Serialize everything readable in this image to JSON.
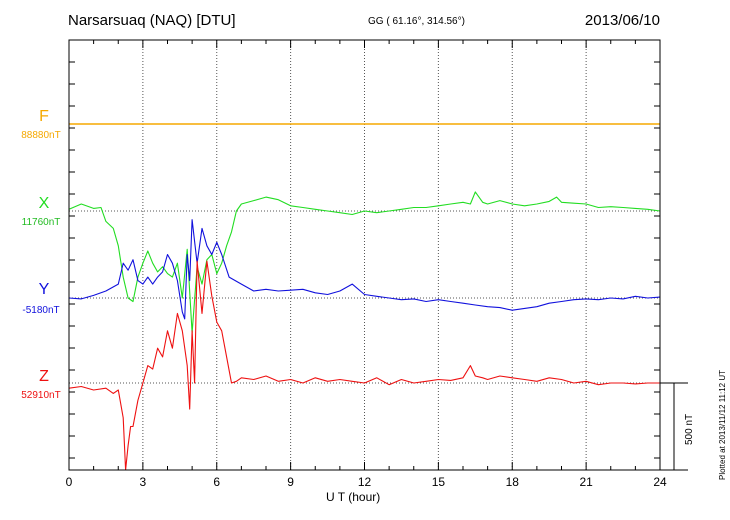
{
  "header": {
    "station": "Narsarsuaq (NAQ)  [DTU]",
    "coords": "GG ( 61.16°, 314.56°)",
    "date": "2013/06/10"
  },
  "components": [
    {
      "label": "F",
      "baseline": "88880nT",
      "color": "#f5a800"
    },
    {
      "label": "X",
      "baseline": "11760nT",
      "color": "#22dd22"
    },
    {
      "label": "Y",
      "baseline": "-5180nT",
      "color": "#1111dd"
    },
    {
      "label": "Z",
      "baseline": "52910nT",
      "color": "#ee1111"
    }
  ],
  "plotted_note": "Plotted at 2013/11/12 11:12 UT",
  "scale_label": "500 nT",
  "chart_data": {
    "type": "line",
    "xlabel": "U T (hour)",
    "xlim": [
      0,
      24
    ],
    "xticks": [
      0,
      3,
      6,
      9,
      12,
      15,
      18,
      21,
      24
    ],
    "scale_nT": 500,
    "grid": true,
    "units": "nT deviation from baseline",
    "series": [
      {
        "name": "F",
        "color": "#f5a800",
        "x": [
          0,
          24
        ],
        "y": [
          0,
          0
        ]
      },
      {
        "name": "X",
        "color": "#22dd22",
        "x": [
          0,
          0.5,
          1.0,
          1.3,
          1.5,
          1.8,
          2.0,
          2.2,
          2.4,
          2.6,
          2.8,
          3.0,
          3.2,
          3.4,
          3.6,
          3.8,
          4.0,
          4.2,
          4.4,
          4.6,
          4.8,
          5.0,
          5.2,
          5.4,
          5.6,
          5.8,
          6.0,
          6.2,
          6.4,
          6.6,
          6.8,
          7.0,
          7.5,
          8.0,
          8.5,
          9.0,
          9.5,
          10.0,
          10.5,
          11.0,
          11.5,
          12.0,
          12.5,
          13.0,
          13.5,
          14.0,
          14.5,
          15.0,
          15.5,
          16.0,
          16.3,
          16.5,
          16.8,
          17.0,
          17.5,
          18.0,
          18.5,
          19.0,
          19.5,
          19.8,
          20.0,
          20.5,
          21.0,
          21.5,
          22.0,
          22.5,
          23.0,
          23.5,
          24.0
        ],
        "y": [
          10,
          40,
          15,
          20,
          -60,
          -100,
          -200,
          -380,
          -500,
          -520,
          -380,
          -300,
          -230,
          -300,
          -350,
          -320,
          -360,
          -380,
          -300,
          -500,
          -220,
          -700,
          -320,
          -420,
          -280,
          -250,
          -360,
          -300,
          -200,
          -120,
          0,
          40,
          60,
          80,
          65,
          30,
          20,
          10,
          0,
          -10,
          -20,
          0,
          -10,
          0,
          10,
          20,
          20,
          30,
          40,
          50,
          40,
          110,
          50,
          40,
          60,
          40,
          30,
          40,
          55,
          80,
          50,
          45,
          40,
          20,
          25,
          20,
          15,
          10,
          0
        ]
      },
      {
        "name": "Y",
        "color": "#1111dd",
        "x": [
          0,
          0.5,
          1.0,
          1.5,
          2.0,
          2.2,
          2.4,
          2.6,
          2.8,
          3.0,
          3.2,
          3.4,
          3.6,
          3.8,
          4.0,
          4.2,
          4.4,
          4.6,
          4.7,
          4.8,
          4.9,
          5.0,
          5.2,
          5.4,
          5.6,
          5.8,
          6.0,
          6.2,
          6.5,
          7.0,
          7.5,
          8.0,
          8.5,
          9.0,
          9.5,
          10.0,
          10.5,
          11.0,
          11.5,
          12.0,
          12.5,
          13.0,
          13.5,
          14.0,
          14.5,
          15.0,
          15.5,
          16.0,
          16.5,
          17.0,
          17.5,
          18.0,
          18.5,
          19.0,
          19.5,
          20.0,
          20.5,
          21.0,
          21.5,
          22.0,
          22.5,
          23.0,
          23.5,
          24.0
        ],
        "y": [
          0,
          -5,
          15,
          40,
          80,
          200,
          160,
          220,
          100,
          80,
          120,
          80,
          120,
          150,
          250,
          200,
          100,
          -80,
          -120,
          250,
          100,
          450,
          200,
          400,
          300,
          250,
          320,
          250,
          120,
          80,
          40,
          50,
          40,
          45,
          50,
          30,
          20,
          40,
          80,
          20,
          10,
          0,
          -10,
          -5,
          -20,
          -10,
          -20,
          -30,
          -40,
          -50,
          -55,
          -70,
          -60,
          -50,
          -30,
          -20,
          -10,
          -5,
          -10,
          0,
          -5,
          10,
          0,
          5
        ]
      },
      {
        "name": "Z",
        "color": "#ee1111",
        "x": [
          0,
          0.5,
          1.0,
          1.5,
          1.8,
          2.0,
          2.2,
          2.3,
          2.4,
          2.5,
          2.6,
          2.8,
          3.0,
          3.2,
          3.4,
          3.6,
          3.8,
          4.0,
          4.2,
          4.4,
          4.6,
          4.8,
          4.9,
          5.0,
          5.1,
          5.2,
          5.4,
          5.6,
          5.8,
          6.0,
          6.2,
          6.4,
          6.6,
          6.8,
          7.0,
          7.5,
          8.0,
          8.5,
          9.0,
          9.5,
          10.0,
          10.5,
          11.0,
          11.5,
          12.0,
          12.5,
          13.0,
          13.5,
          14.0,
          14.5,
          15.0,
          15.5,
          16.0,
          16.3,
          16.5,
          16.8,
          17.0,
          17.5,
          18.0,
          18.5,
          19.0,
          19.5,
          20.0,
          20.5,
          21.0,
          21.5,
          22.0,
          22.5,
          23.0,
          23.5,
          24.0
        ],
        "y": [
          -30,
          -20,
          -40,
          -30,
          -60,
          -40,
          -200,
          -500,
          -360,
          -250,
          -250,
          -100,
          0,
          100,
          80,
          200,
          150,
          300,
          200,
          400,
          300,
          100,
          -150,
          300,
          0,
          700,
          400,
          700,
          500,
          350,
          300,
          150,
          0,
          10,
          30,
          20,
          40,
          10,
          20,
          0,
          30,
          10,
          20,
          10,
          0,
          30,
          -10,
          20,
          0,
          10,
          20,
          15,
          30,
          100,
          40,
          30,
          20,
          40,
          30,
          20,
          10,
          30,
          20,
          0,
          10,
          -10,
          0,
          0,
          -5,
          0,
          0
        ]
      }
    ]
  }
}
